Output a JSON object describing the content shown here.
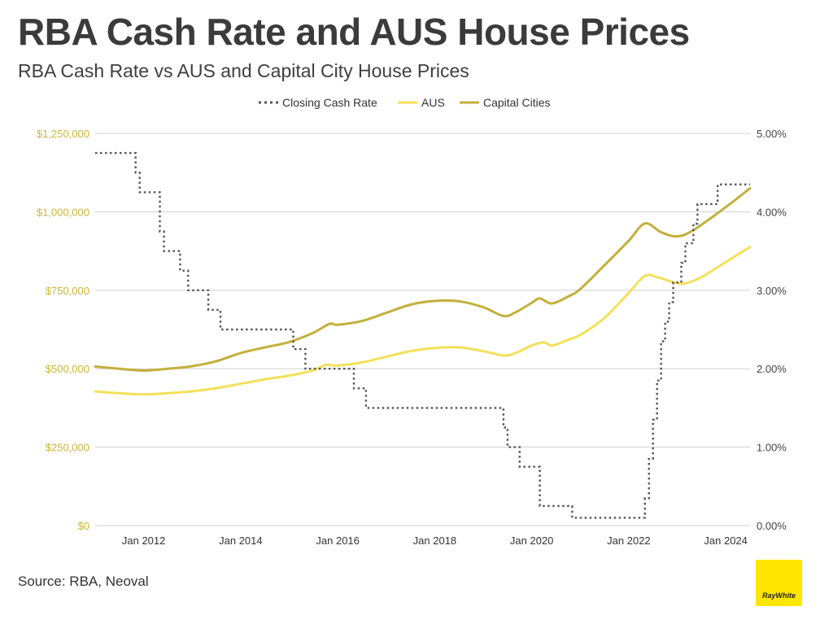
{
  "header": {
    "title": "RBA Cash Rate and AUS House Prices",
    "subtitle": "RBA Cash Rate vs AUS and Capital City House Prices"
  },
  "footer": {
    "source": "Source: RBA, Neoval",
    "logo_text": "RayWhite"
  },
  "colors": {
    "cash_rate": "#555555",
    "aus": "#f2e15a",
    "capital_cities": "#c2b03c",
    "left_axis_text": "#c9b53a",
    "right_axis_text": "#444444",
    "gridline": "#d0d0d0",
    "logo_bg": "#ffe600"
  },
  "chart_data": {
    "type": "line",
    "x_range": [
      "2011-01",
      "2024-07"
    ],
    "x_ticks": [
      {
        "date": "2012-01",
        "label": "Jan 2012"
      },
      {
        "date": "2014-01",
        "label": "Jan 2014"
      },
      {
        "date": "2016-01",
        "label": "Jan 2016"
      },
      {
        "date": "2018-01",
        "label": "Jan 2018"
      },
      {
        "date": "2020-01",
        "label": "Jan 2020"
      },
      {
        "date": "2022-01",
        "label": "Jan 2022"
      },
      {
        "date": "2024-01",
        "label": "Jan 2024"
      }
    ],
    "y_left": {
      "range": [
        0,
        1250000
      ],
      "ticks": [
        {
          "value": 0,
          "label": "$0"
        },
        {
          "value": 250000,
          "label": "$250,000"
        },
        {
          "value": 500000,
          "label": "$500,000"
        },
        {
          "value": 750000,
          "label": "$750,000"
        },
        {
          "value": 1000000,
          "label": "$1,000,000"
        },
        {
          "value": 1250000,
          "label": "$1,250,000"
        }
      ]
    },
    "y_right": {
      "range": [
        0,
        5
      ],
      "ticks": [
        {
          "value": 0,
          "label": "0.00%"
        },
        {
          "value": 1,
          "label": "1.00%"
        },
        {
          "value": 2,
          "label": "2.00%"
        },
        {
          "value": 3,
          "label": "3.00%"
        },
        {
          "value": 4,
          "label": "4.00%"
        },
        {
          "value": 5,
          "label": "5.00%"
        }
      ]
    },
    "grid": true,
    "legend_position": "top-center",
    "series": [
      {
        "name": "Closing Cash Rate",
        "axis": "right",
        "style": "dotted-step",
        "points": [
          [
            "2011-01",
            4.75
          ],
          [
            "2011-11",
            4.5
          ],
          [
            "2011-12",
            4.25
          ],
          [
            "2012-05",
            3.75
          ],
          [
            "2012-06",
            3.5
          ],
          [
            "2012-10",
            3.25
          ],
          [
            "2012-12",
            3.0
          ],
          [
            "2013-05",
            2.75
          ],
          [
            "2013-08",
            2.5
          ],
          [
            "2015-02",
            2.25
          ],
          [
            "2015-05",
            2.0
          ],
          [
            "2016-05",
            1.75
          ],
          [
            "2016-08",
            1.5
          ],
          [
            "2019-06",
            1.25
          ],
          [
            "2019-07",
            1.0
          ],
          [
            "2019-10",
            0.75
          ],
          [
            "2020-03",
            0.25
          ],
          [
            "2020-11",
            0.1
          ],
          [
            "2022-05",
            0.35
          ],
          [
            "2022-06",
            0.85
          ],
          [
            "2022-07",
            1.35
          ],
          [
            "2022-08",
            1.85
          ],
          [
            "2022-09",
            2.35
          ],
          [
            "2022-10",
            2.6
          ],
          [
            "2022-11",
            2.85
          ],
          [
            "2022-12",
            3.1
          ],
          [
            "2023-02",
            3.35
          ],
          [
            "2023-03",
            3.6
          ],
          [
            "2023-05",
            3.85
          ],
          [
            "2023-06",
            4.1
          ],
          [
            "2023-11",
            4.35
          ],
          [
            "2024-07",
            4.35
          ]
        ]
      },
      {
        "name": "AUS",
        "axis": "left",
        "style": "solid",
        "points": [
          [
            "2011-01",
            427000
          ],
          [
            "2011-07",
            422000
          ],
          [
            "2012-01",
            418000
          ],
          [
            "2012-07",
            422000
          ],
          [
            "2013-01",
            428000
          ],
          [
            "2013-07",
            438000
          ],
          [
            "2014-01",
            452000
          ],
          [
            "2014-07",
            466000
          ],
          [
            "2015-01",
            478000
          ],
          [
            "2015-07",
            495000
          ],
          [
            "2015-10",
            512000
          ],
          [
            "2016-01",
            510000
          ],
          [
            "2016-07",
            520000
          ],
          [
            "2017-01",
            538000
          ],
          [
            "2017-07",
            556000
          ],
          [
            "2018-01",
            566000
          ],
          [
            "2018-07",
            568000
          ],
          [
            "2019-01",
            556000
          ],
          [
            "2019-06",
            542000
          ],
          [
            "2019-09",
            550000
          ],
          [
            "2020-01",
            574000
          ],
          [
            "2020-04",
            584000
          ],
          [
            "2020-06",
            574000
          ],
          [
            "2020-10",
            592000
          ],
          [
            "2021-01",
            608000
          ],
          [
            "2021-07",
            662000
          ],
          [
            "2022-01",
            742000
          ],
          [
            "2022-05",
            796000
          ],
          [
            "2022-08",
            792000
          ],
          [
            "2022-12",
            776000
          ],
          [
            "2023-03",
            772000
          ],
          [
            "2023-07",
            792000
          ],
          [
            "2024-01",
            840000
          ],
          [
            "2024-07",
            888000
          ]
        ]
      },
      {
        "name": "Capital Cities",
        "axis": "left",
        "style": "solid",
        "points": [
          [
            "2011-01",
            507000
          ],
          [
            "2011-07",
            500000
          ],
          [
            "2012-01",
            494000
          ],
          [
            "2012-07",
            500000
          ],
          [
            "2013-01",
            508000
          ],
          [
            "2013-07",
            524000
          ],
          [
            "2014-01",
            550000
          ],
          [
            "2014-07",
            568000
          ],
          [
            "2015-01",
            585000
          ],
          [
            "2015-07",
            615000
          ],
          [
            "2015-11",
            643000
          ],
          [
            "2016-01",
            640000
          ],
          [
            "2016-07",
            652000
          ],
          [
            "2017-01",
            678000
          ],
          [
            "2017-07",
            704000
          ],
          [
            "2018-01",
            716000
          ],
          [
            "2018-07",
            715000
          ],
          [
            "2019-01",
            696000
          ],
          [
            "2019-06",
            668000
          ],
          [
            "2019-09",
            680000
          ],
          [
            "2020-01",
            710000
          ],
          [
            "2020-03",
            724000
          ],
          [
            "2020-06",
            708000
          ],
          [
            "2020-10",
            730000
          ],
          [
            "2021-01",
            754000
          ],
          [
            "2021-07",
            830000
          ],
          [
            "2022-01",
            908000
          ],
          [
            "2022-05",
            963000
          ],
          [
            "2022-09",
            935000
          ],
          [
            "2023-01",
            922000
          ],
          [
            "2023-05",
            942000
          ],
          [
            "2024-01",
            1015000
          ],
          [
            "2024-07",
            1075000
          ]
        ]
      }
    ]
  }
}
